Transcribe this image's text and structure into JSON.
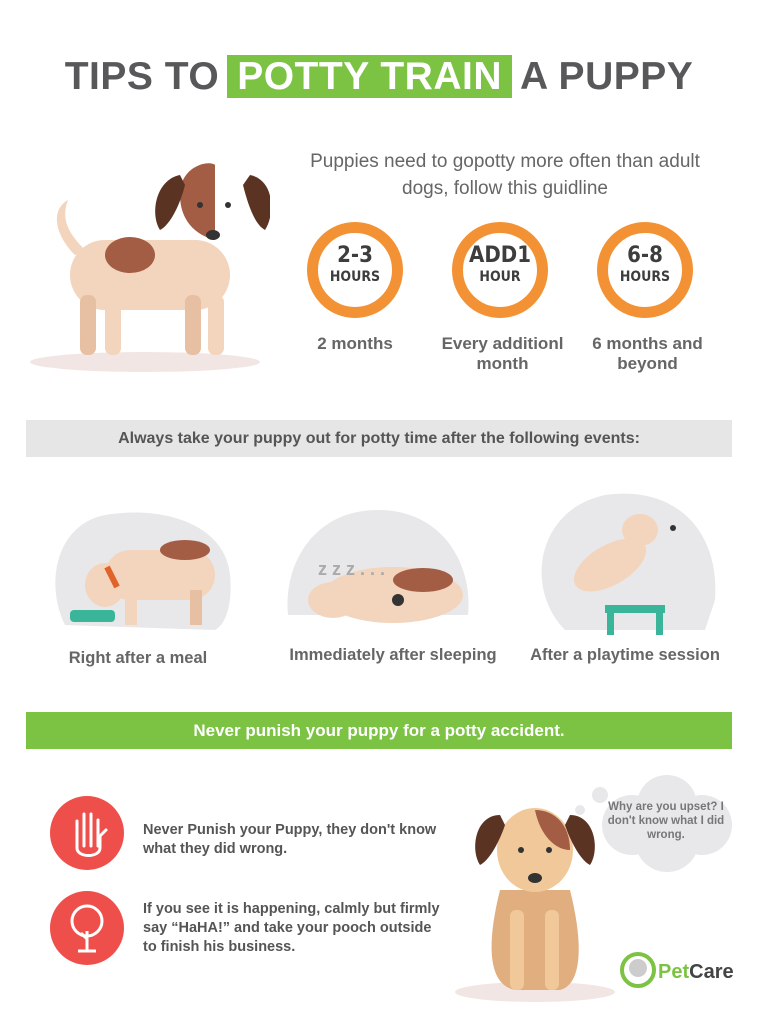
{
  "title": {
    "pre": "TIPS TO",
    "highlight": "POTTY TRAIN",
    "post": "A PUPPY"
  },
  "subtitle": "Puppies need to gopotty more often than adult dogs, follow this guidline",
  "schedule": [
    {
      "value": "2-3",
      "unit": "HOURS",
      "label": "2 months"
    },
    {
      "value": "ADD1",
      "unit": "HOUR",
      "label": "Every additionl month"
    },
    {
      "value": "6-8",
      "unit": "HOURS",
      "label": "6 months and beyond"
    }
  ],
  "events_banner": "Always take your puppy out for potty time after the following events:",
  "events": [
    {
      "label": "Right after a meal",
      "icon": "dog-eating-icon"
    },
    {
      "label": "Immediately after sleeping",
      "icon": "dog-sleeping-icon"
    },
    {
      "label": "After a playtime session",
      "icon": "dog-jumping-icon"
    }
  ],
  "punish_banner": "Never punish your puppy for a potty accident.",
  "tips": [
    {
      "text": "Never Punish your Puppy, they don't know what they did wrong.",
      "icon": "stop-hand-icon"
    },
    {
      "text": "If you see it is happening, calmly but firmly say “HaHA!” and take your pooch outside to finish his business.",
      "icon": "tree-icon"
    }
  ],
  "bubble": "Why are you upset? I don't know what I did wrong.",
  "logo": "PetCare",
  "colors": {
    "green": "#7cc243",
    "orange": "#f39234",
    "red": "#ef4f4a",
    "gray_band": "#e6e6e7",
    "text": "#58585a"
  }
}
